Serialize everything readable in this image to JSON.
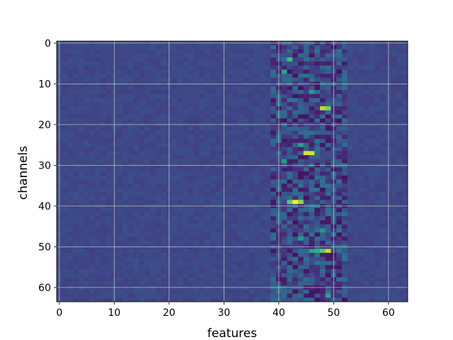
{
  "chart_data": {
    "type": "heatmap",
    "title": "",
    "xlabel": "features",
    "ylabel": "channels",
    "x_range": [
      0,
      63
    ],
    "y_range": [
      0,
      63
    ],
    "y_inverted": true,
    "x_ticks": [
      0,
      10,
      20,
      30,
      40,
      50,
      60
    ],
    "y_ticks": [
      0,
      10,
      20,
      30,
      40,
      50,
      60
    ],
    "grid": true,
    "colormap": "viridis",
    "background_value": 0.22,
    "active_feature_range": [
      39,
      52
    ],
    "active_feature_values_note": "",
    "hotspots": [
      {
        "x": 42,
        "y": 4,
        "value": 0.7
      },
      {
        "x": 48,
        "y": 16,
        "value": 0.9
      },
      {
        "x": 49,
        "y": 16,
        "value": 0.8
      },
      {
        "x": 45,
        "y": 27,
        "value": 0.95
      },
      {
        "x": 46,
        "y": 27,
        "value": 0.95
      },
      {
        "x": 42,
        "y": 39,
        "value": 0.75
      },
      {
        "x": 43,
        "y": 39,
        "value": 1.0
      },
      {
        "x": 44,
        "y": 39,
        "value": 0.85
      },
      {
        "x": 46,
        "y": 51,
        "value": 0.6
      },
      {
        "x": 47,
        "y": 51,
        "value": 0.65
      },
      {
        "x": 48,
        "y": 51,
        "value": 0.75
      },
      {
        "x": 49,
        "y": 51,
        "value": 0.9
      },
      {
        "x": 41,
        "y": 7,
        "value": 0.6
      },
      {
        "x": 46,
        "y": 12,
        "value": 0.55
      },
      {
        "x": 44,
        "y": 25,
        "value": 0.6
      },
      {
        "x": 41,
        "y": 29,
        "value": 0.55
      },
      {
        "x": 48,
        "y": 46,
        "value": 0.55
      },
      {
        "x": 44,
        "y": 48,
        "value": 0.55
      },
      {
        "x": 49,
        "y": 62,
        "value": 0.6
      },
      {
        "x": 42,
        "y": 62,
        "value": 0.1
      },
      {
        "x": 49,
        "y": 57,
        "value": 0.05
      },
      {
        "x": 44,
        "y": 18,
        "value": 0.05
      },
      {
        "x": 45,
        "y": 38,
        "value": 0.05
      },
      {
        "x": 44,
        "y": 33,
        "value": 0.05
      },
      {
        "x": 47,
        "y": 30,
        "value": 0.05
      }
    ]
  }
}
